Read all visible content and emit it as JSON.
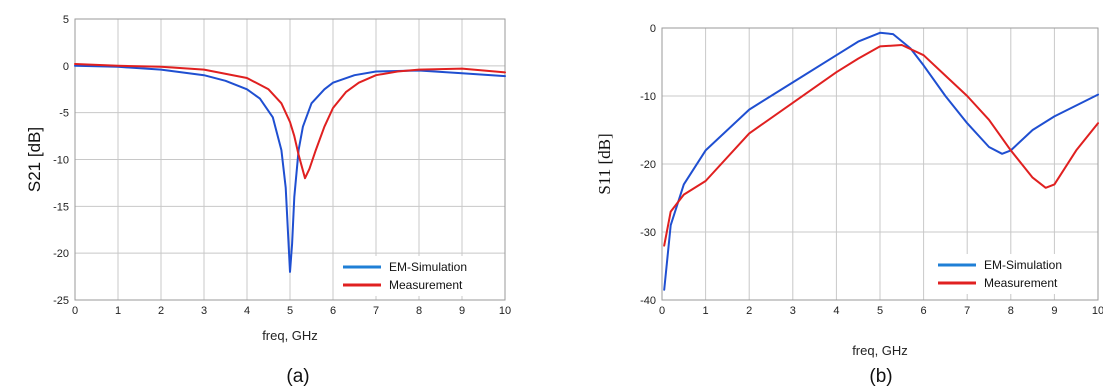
{
  "colors": {
    "simulation": "#1f4fd1",
    "measurement": "#e02020",
    "legend_simulation": "#1f7fd6",
    "legend_measurement": "#e02020"
  },
  "chart_data": [
    {
      "type": "line",
      "caption": "(a)",
      "title": "",
      "xlabel": "freq, GHz",
      "ylabel": "S21 [dB]",
      "xlim": [
        0,
        10
      ],
      "ylim": [
        -25,
        5
      ],
      "xticks": [
        "0",
        "1",
        "2",
        "3",
        "4",
        "5",
        "6",
        "7",
        "8",
        "9",
        "10"
      ],
      "yticks": [
        "5",
        "0",
        "-5",
        "-10",
        "-15",
        "-20",
        "-25"
      ],
      "grid": true,
      "legend_position": "bottom-right",
      "series": [
        {
          "name": "EM-Simulation",
          "color_key": "simulation",
          "points": [
            [
              0,
              0
            ],
            [
              1,
              -0.1
            ],
            [
              2,
              -0.4
            ],
            [
              3,
              -1.0
            ],
            [
              3.5,
              -1.6
            ],
            [
              4,
              -2.5
            ],
            [
              4.3,
              -3.5
            ],
            [
              4.6,
              -5.5
            ],
            [
              4.8,
              -9
            ],
            [
              4.9,
              -13
            ],
            [
              5.0,
              -22
            ],
            [
              5.05,
              -19
            ],
            [
              5.1,
              -14
            ],
            [
              5.2,
              -9
            ],
            [
              5.3,
              -6.5
            ],
            [
              5.5,
              -4
            ],
            [
              5.8,
              -2.5
            ],
            [
              6,
              -1.8
            ],
            [
              6.5,
              -1.0
            ],
            [
              7,
              -0.6
            ],
            [
              8,
              -0.5
            ],
            [
              9,
              -0.8
            ],
            [
              10,
              -1.1
            ]
          ]
        },
        {
          "name": "Measurement",
          "color_key": "measurement",
          "points": [
            [
              0,
              0.2
            ],
            [
              1,
              0
            ],
            [
              2,
              -0.1
            ],
            [
              3,
              -0.4
            ],
            [
              4,
              -1.3
            ],
            [
              4.5,
              -2.5
            ],
            [
              4.8,
              -4
            ],
            [
              5.0,
              -6
            ],
            [
              5.1,
              -7.5
            ],
            [
              5.2,
              -9.5
            ],
            [
              5.35,
              -12
            ],
            [
              5.45,
              -11
            ],
            [
              5.6,
              -9
            ],
            [
              5.8,
              -6.5
            ],
            [
              6,
              -4.5
            ],
            [
              6.3,
              -2.8
            ],
            [
              6.6,
              -1.8
            ],
            [
              7,
              -1.0
            ],
            [
              7.5,
              -0.6
            ],
            [
              8,
              -0.4
            ],
            [
              9,
              -0.3
            ],
            [
              10,
              -0.7
            ]
          ]
        }
      ]
    },
    {
      "type": "line",
      "caption": "(b)",
      "title": "",
      "xlabel": "freq, GHz",
      "ylabel": "S11 [dB]",
      "xlim": [
        0,
        10
      ],
      "ylim": [
        -40,
        0
      ],
      "xticks": [
        "0",
        "1",
        "2",
        "3",
        "4",
        "5",
        "6",
        "7",
        "8",
        "9",
        "10"
      ],
      "yticks": [
        "0",
        "-10",
        "-20",
        "-30",
        "-40"
      ],
      "grid": true,
      "legend_position": "bottom-right",
      "series": [
        {
          "name": "EM-Simulation",
          "color_key": "simulation",
          "points": [
            [
              0.05,
              -38.5
            ],
            [
              0.2,
              -29
            ],
            [
              0.5,
              -23
            ],
            [
              1,
              -18
            ],
            [
              2,
              -12
            ],
            [
              3,
              -8
            ],
            [
              4,
              -4
            ],
            [
              4.5,
              -2
            ],
            [
              5,
              -0.7
            ],
            [
              5.3,
              -0.9
            ],
            [
              5.7,
              -3
            ],
            [
              6,
              -5.5
            ],
            [
              6.5,
              -10
            ],
            [
              7,
              -14
            ],
            [
              7.5,
              -17.5
            ],
            [
              7.8,
              -18.5
            ],
            [
              8,
              -18
            ],
            [
              8.5,
              -15
            ],
            [
              9,
              -13
            ],
            [
              10,
              -9.8
            ]
          ]
        },
        {
          "name": "Measurement",
          "color_key": "measurement",
          "points": [
            [
              0.05,
              -32
            ],
            [
              0.2,
              -27
            ],
            [
              0.5,
              -24.5
            ],
            [
              1,
              -22.5
            ],
            [
              2,
              -15.5
            ],
            [
              3,
              -11
            ],
            [
              4,
              -6.5
            ],
            [
              4.5,
              -4.5
            ],
            [
              5,
              -2.7
            ],
            [
              5.5,
              -2.5
            ],
            [
              6,
              -4
            ],
            [
              6.5,
              -7
            ],
            [
              7,
              -10
            ],
            [
              7.5,
              -13.5
            ],
            [
              8,
              -18
            ],
            [
              8.5,
              -22
            ],
            [
              8.8,
              -23.5
            ],
            [
              9,
              -23
            ],
            [
              9.5,
              -18
            ],
            [
              10,
              -14
            ]
          ]
        }
      ]
    }
  ]
}
